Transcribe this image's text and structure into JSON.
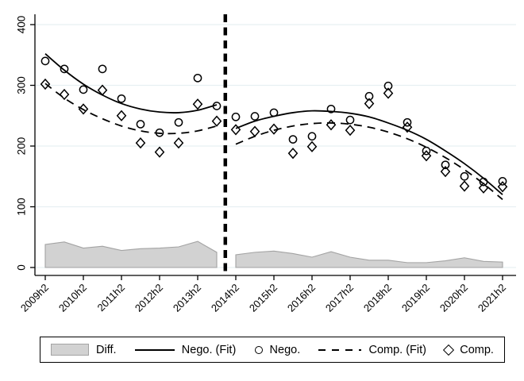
{
  "legend": {
    "items": [
      {
        "key": "diff",
        "label": "Diff.",
        "swatch": "area-swatch"
      },
      {
        "key": "nego_fit",
        "label": "Nego. (Fit)",
        "swatch": "solid-line-swatch"
      },
      {
        "key": "nego",
        "label": "Nego.",
        "swatch": "circle-marker-swatch"
      },
      {
        "key": "comp_fit",
        "label": "Comp. (Fit)",
        "swatch": "dashed-line-swatch"
      },
      {
        "key": "comp",
        "label": "Comp.",
        "swatch": "diamond-marker-swatch"
      }
    ]
  },
  "colors": {
    "axis": "#000000",
    "grid": "#e7f0f2",
    "area_fill": "#d2d2d2",
    "area_edge": "#a3a3a3",
    "line": "#000000",
    "marker": "#000000",
    "vline": "#000000",
    "background": "#ffffff"
  },
  "chart_data": {
    "type": "combo (area + scatter + quadratic fit lines)",
    "title": "",
    "xlabel": "",
    "ylabel": "",
    "ylim": [
      0,
      400
    ],
    "y_ticks": [
      0,
      100,
      200,
      300,
      400
    ],
    "grid": true,
    "x_categories": [
      "2009h2",
      "2010h1",
      "2010h2",
      "2011h1",
      "2011h2",
      "2012h1",
      "2012h2",
      "2013h1",
      "2013h2",
      "2014h1",
      "2014h2",
      "2015h1",
      "2015h2",
      "2016h1",
      "2016h2",
      "2017h1",
      "2017h2",
      "2018h1",
      "2018h2",
      "2019h1",
      "2019h2",
      "2020h1",
      "2020h2",
      "2021h1",
      "2021h2"
    ],
    "x_tick_labels": [
      {
        "index": 0,
        "label": "2009h2"
      },
      {
        "index": 2,
        "label": "2010h2"
      },
      {
        "index": 4,
        "label": "2011h2"
      },
      {
        "index": 6,
        "label": "2012h2"
      },
      {
        "index": 8,
        "label": "2013h2"
      },
      {
        "index": 10,
        "label": "2014h2"
      },
      {
        "index": 12,
        "label": "2015h2"
      },
      {
        "index": 14,
        "label": "2016h2"
      },
      {
        "index": 16,
        "label": "2017h2"
      },
      {
        "index": 18,
        "label": "2018h2"
      },
      {
        "index": 20,
        "label": "2019h2"
      },
      {
        "index": 22,
        "label": "2020h2"
      },
      {
        "index": 24,
        "label": "2021h2"
      }
    ],
    "vline": {
      "at_index": 9.45,
      "style": "thick-dashed-black"
    },
    "series": [
      {
        "name": "Diff.",
        "type": "area",
        "segments": [
          {
            "start_index": 0,
            "values": [
              38,
              42,
              32,
              35,
              28,
              31,
              32,
              34,
              43,
              25
            ]
          },
          {
            "start_index": 10,
            "values": [
              21,
              25,
              27,
              23,
              17,
              26,
              17,
              12,
              12,
              8,
              8,
              11,
              16,
              10,
              9
            ]
          }
        ]
      },
      {
        "name": "Nego. (Fit)",
        "type": "line",
        "line_style": "solid",
        "segments": [
          {
            "start_index": 0,
            "values": [
              352,
              325,
              302,
              284,
              270,
              261,
              256,
              255,
              259,
              268
            ]
          },
          {
            "start_index": 10,
            "values": [
              229,
              241,
              249,
              255,
              258,
              257,
              254,
              248,
              238,
              226,
              211,
              192,
              171,
              147,
              120
            ]
          }
        ]
      },
      {
        "name": "Comp. (Fit)",
        "type": "line",
        "line_style": "dashed",
        "segments": [
          {
            "start_index": 0,
            "values": [
              303,
              279,
              260,
              245,
              233,
              225,
              221,
              221,
              225,
              233
            ]
          },
          {
            "start_index": 10,
            "values": [
              203,
              216,
              226,
              233,
              237,
              238,
              236,
              231,
              223,
              212,
              198,
              181,
              161,
              138,
              112
            ]
          }
        ]
      },
      {
        "name": "Nego.",
        "type": "scatter",
        "marker": "circle",
        "values": [
          340,
          327,
          293,
          327,
          278,
          236,
          222,
          239,
          312,
          266,
          248,
          249,
          255,
          211,
          216,
          261,
          243,
          282,
          299,
          239,
          192,
          169,
          150,
          141,
          142
        ]
      },
      {
        "name": "Comp.",
        "type": "scatter",
        "marker": "diamond",
        "values": [
          302,
          285,
          261,
          292,
          250,
          205,
          190,
          205,
          269,
          241,
          227,
          224,
          228,
          188,
          199,
          235,
          226,
          270,
          287,
          231,
          184,
          158,
          134,
          131,
          133
        ]
      }
    ]
  }
}
